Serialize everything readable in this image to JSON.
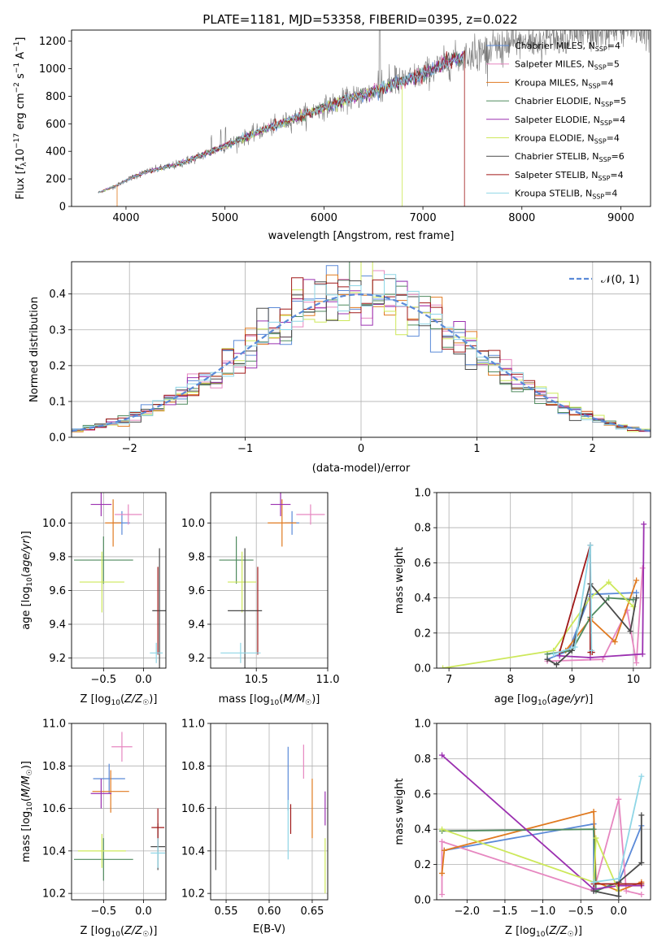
{
  "colors": {
    "chabrier_miles": "#5b8ad8",
    "salpeter_miles": "#e687c0",
    "kroupa_miles": "#e07a20",
    "chabrier_elodie": "#4f8a5e",
    "salpeter_elodie": "#9b30b0",
    "kroupa_elodie": "#cde85a",
    "chabrier_stelib": "#4a4a4a",
    "salpeter_stelib": "#a01818",
    "kroupa_stelib": "#8fd6e6"
  },
  "chart_data": [
    {
      "id": "spectrum",
      "type": "line",
      "title": "PLATE=1181, MJD=53358, FIBERID=0395, z=0.022",
      "xlabel": "wavelength [Angstrom, rest frame]",
      "ylabel": "Flux [f_λ10^-17 erg cm^-2 s^-1 A^-1]",
      "xlim": [
        3450,
        9300
      ],
      "ylim": [
        0,
        1280
      ],
      "xticks": [
        4000,
        5000,
        6000,
        7000,
        8000,
        9000
      ],
      "yticks": [
        0,
        200,
        400,
        600,
        800,
        1000,
        1200
      ],
      "xtick_labels": [
        "4000",
        "5000",
        "6000",
        "7000",
        "8000",
        "9000"
      ],
      "ytick_labels": [
        "0",
        "200",
        "400",
        "600",
        "800",
        "1000",
        "1200"
      ],
      "legend_position": "top-right",
      "series": [
        {
          "name": "Chabrier MILES, N_SSP=4",
          "legend_main": "Chabrier MILES, N",
          "legend_sub": "SSP",
          "legend_tail": "=4",
          "color": "#5b8ad8"
        },
        {
          "name": "Salpeter MILES, N_SSP=5",
          "legend_main": "Salpeter MILES, N",
          "legend_sub": "SSP",
          "legend_tail": "=5",
          "color": "#e687c0"
        },
        {
          "name": "Kroupa MILES, N_SSP=4",
          "legend_main": "Kroupa MILES, N",
          "legend_sub": "SSP",
          "legend_tail": "=4",
          "color": "#e07a20"
        },
        {
          "name": "Chabrier ELODIE, N_SSP=5",
          "legend_main": "Chabrier ELODIE, N",
          "legend_sub": "SSP",
          "legend_tail": "=5",
          "color": "#4f8a5e"
        },
        {
          "name": "Salpeter ELODIE, N_SSP=4",
          "legend_main": "Salpeter ELODIE, N",
          "legend_sub": "SSP",
          "legend_tail": "=4",
          "color": "#9b30b0"
        },
        {
          "name": "Kroupa ELODIE, N_SSP=4",
          "legend_main": "Kroupa ELODIE, N",
          "legend_sub": "SSP",
          "legend_tail": "=4",
          "color": "#cde85a"
        },
        {
          "name": "Chabrier STELIB, N_SSP=6",
          "legend_main": "Chabrier STELIB, N",
          "legend_sub": "SSP",
          "legend_tail": "=6",
          "color": "#4a4a4a"
        },
        {
          "name": "Salpeter STELIB, N_SSP=4",
          "legend_main": "Salpeter STELIB, N",
          "legend_sub": "SSP",
          "legend_tail": "=4",
          "color": "#a01818"
        },
        {
          "name": "Kroupa STELIB, N_SSP=4",
          "legend_main": "Kroupa STELIB, N",
          "legend_sub": "SSP",
          "legend_tail": "=4",
          "color": "#8fd6e6"
        }
      ],
      "continuum": {
        "x": [
          3720,
          3900,
          4000,
          4200,
          4500,
          4800,
          5000,
          5300,
          5600,
          6000,
          6300,
          6600,
          7000,
          7300,
          7500,
          7800,
          8200,
          8600,
          9000,
          9300
        ],
        "y": [
          100,
          150,
          190,
          250,
          300,
          380,
          440,
          530,
          610,
          720,
          790,
          860,
          960,
          1060,
          1110,
          1160,
          1210,
          1250,
          1280,
          1290
        ]
      },
      "dropouts": [
        {
          "x": 3910,
          "series": "Kroupa MILES, N_SSP=4"
        },
        {
          "x": 6790,
          "series": "Kroupa ELODIE, N_SSP=4"
        },
        {
          "x": 7420,
          "series": "Salpeter STELIB, N_SSP=4"
        }
      ]
    },
    {
      "id": "residuals",
      "type": "histogram",
      "xlabel": "(data-model)/error",
      "ylabel": "Normed distribution",
      "xlim": [
        -2.5,
        2.5
      ],
      "ylim": [
        0,
        0.49
      ],
      "xticks": [
        -2,
        -1,
        0,
        1,
        2
      ],
      "yticks": [
        0.0,
        0.1,
        0.2,
        0.3,
        0.4
      ],
      "xtick_labels": [
        "−2",
        "−1",
        "0",
        "1",
        "2"
      ],
      "ytick_labels": [
        "0.0",
        "0.1",
        "0.2",
        "0.3",
        "0.4"
      ],
      "grid": true,
      "bin_width": 0.1,
      "legend_position": "top-right",
      "reference": {
        "name": "𝒩(0, 1)",
        "legend": "𝒩(0, 1)",
        "color": "#5b8ad8",
        "style": "dashed"
      }
    },
    {
      "id": "age_vs_Z",
      "type": "errorbar",
      "xlabel": "Z [log10(Z/Z☉)]",
      "ylabel": "age [log10(age/yr)]",
      "xlim": [
        -0.9,
        0.28
      ],
      "ylim": [
        9.14,
        10.18
      ],
      "xticks": [
        -0.5,
        0.0
      ],
      "yticks": [
        9.2,
        9.4,
        9.6,
        9.8,
        10.0
      ],
      "xtick_labels": [
        "−0.5",
        "0.0"
      ],
      "ytick_labels": [
        "9.2",
        "9.4",
        "9.6",
        "9.8",
        "10.0"
      ],
      "points": [
        {
          "x": -0.27,
          "y": 10.0,
          "xerr": 0.1,
          "yerr": 0.07,
          "color": "#5b8ad8"
        },
        {
          "x": -0.19,
          "y": 10.05,
          "xerr": 0.17,
          "yerr": 0.06,
          "color": "#e687c0"
        },
        {
          "x": -0.38,
          "y": 10.0,
          "xerr": 0.1,
          "yerr": 0.14,
          "color": "#e07a20"
        },
        {
          "x": -0.5,
          "y": 9.78,
          "xerr": 0.37,
          "yerr": 0.14,
          "color": "#4f8a5e"
        },
        {
          "x": -0.53,
          "y": 10.11,
          "xerr": 0.13,
          "yerr": 0.07,
          "color": "#9b30b0"
        },
        {
          "x": -0.52,
          "y": 9.65,
          "xerr": 0.28,
          "yerr": 0.18,
          "color": "#cde85a"
        },
        {
          "x": 0.2,
          "y": 9.48,
          "xerr": 0.09,
          "yerr": 0.37,
          "color": "#4a4a4a"
        },
        {
          "x": 0.18,
          "y": 9.48,
          "xerr": 0.0,
          "yerr": 0.26,
          "color": "#a01818"
        },
        {
          "x": 0.16,
          "y": 9.23,
          "xerr": 0.08,
          "yerr": 0.06,
          "color": "#8fd6e6"
        }
      ]
    },
    {
      "id": "age_vs_mass",
      "type": "errorbar",
      "xlabel": "mass [log10(M/M☉)]",
      "ylabel": "",
      "xlim": [
        10.18,
        11.0
      ],
      "ylim": [
        9.14,
        10.18
      ],
      "xticks": [
        10.5,
        11.0
      ],
      "yticks": [
        9.2,
        9.4,
        9.6,
        9.8,
        10.0
      ],
      "xtick_labels": [
        "10.5",
        "11.0"
      ],
      "ytick_labels": [
        "9.2",
        "9.4",
        "9.6",
        "9.8",
        "10.0"
      ],
      "points": [
        {
          "x": 10.75,
          "y": 10.0,
          "xerr": 0.05,
          "yerr": 0.07,
          "color": "#5b8ad8"
        },
        {
          "x": 10.88,
          "y": 10.05,
          "xerr": 0.1,
          "yerr": 0.06,
          "color": "#e687c0"
        },
        {
          "x": 10.68,
          "y": 10.0,
          "xerr": 0.1,
          "yerr": 0.14,
          "color": "#e07a20"
        },
        {
          "x": 10.36,
          "y": 9.78,
          "xerr": 0.12,
          "yerr": 0.14,
          "color": "#4f8a5e"
        },
        {
          "x": 10.67,
          "y": 10.11,
          "xerr": 0.07,
          "yerr": 0.07,
          "color": "#9b30b0"
        },
        {
          "x": 10.4,
          "y": 9.65,
          "xerr": 0.1,
          "yerr": 0.18,
          "color": "#cde85a"
        },
        {
          "x": 10.42,
          "y": 9.48,
          "xerr": 0.12,
          "yerr": 0.37,
          "color": "#4a4a4a"
        },
        {
          "x": 10.51,
          "y": 9.48,
          "xerr": 0.0,
          "yerr": 0.26,
          "color": "#a01818"
        },
        {
          "x": 10.39,
          "y": 9.23,
          "xerr": 0.14,
          "yerr": 0.06,
          "color": "#8fd6e6"
        }
      ]
    },
    {
      "id": "weight_vs_age",
      "type": "line",
      "xlabel": "age [log10(age/yr)]",
      "ylabel": "mass weight",
      "xlim": [
        6.8,
        10.28
      ],
      "ylim": [
        0.0,
        1.0
      ],
      "xticks": [
        7,
        8,
        9,
        10
      ],
      "yticks": [
        0.0,
        0.2,
        0.4,
        0.6,
        0.8,
        1.0
      ],
      "xtick_labels": [
        "7",
        "8",
        "9",
        "10"
      ],
      "ytick_labels": [
        "0.0",
        "0.2",
        "0.4",
        "0.6",
        "0.8",
        "1.0"
      ],
      "grid": true,
      "series": [
        {
          "name": "Chabrier MILES",
          "color": "#5b8ad8",
          "x": [
            8.6,
            8.95,
            9.3,
            10.05
          ],
          "y": [
            0.05,
            0.1,
            0.42,
            0.43
          ]
        },
        {
          "name": "Salpeter MILES",
          "color": "#e687c0",
          "x": [
            8.6,
            9.5,
            9.9,
            10.05,
            10.15
          ],
          "y": [
            0.04,
            0.05,
            0.33,
            0.03,
            0.57
          ]
        },
        {
          "name": "Kroupa MILES",
          "color": "#e07a20",
          "x": [
            8.9,
            9.3,
            9.7,
            10.05
          ],
          "y": [
            0.1,
            0.28,
            0.15,
            0.5
          ]
        },
        {
          "name": "Chabrier ELODIE",
          "color": "#4f8a5e",
          "x": [
            8.6,
            9.0,
            9.3,
            9.6,
            10.0
          ],
          "y": [
            0.08,
            0.1,
            0.29,
            0.4,
            0.39
          ]
        },
        {
          "name": "Salpeter ELODIE",
          "color": "#9b30b0",
          "x": [
            8.8,
            9.3,
            10.15,
            10.17
          ],
          "y": [
            0.07,
            0.06,
            0.08,
            0.82
          ]
        },
        {
          "name": "Kroupa ELODIE",
          "color": "#cde85a",
          "x": [
            6.9,
            8.7,
            9.3,
            9.6,
            10.0
          ],
          "y": [
            0.0,
            0.1,
            0.4,
            0.49,
            0.35
          ]
        },
        {
          "name": "Chabrier STELIB",
          "color": "#4a4a4a",
          "x": [
            8.6,
            8.75,
            9.0,
            9.3,
            9.95,
            10.05
          ],
          "y": [
            0.05,
            0.02,
            0.1,
            0.48,
            0.21,
            0.4
          ]
        },
        {
          "name": "Salpeter STELIB",
          "color": "#a01818",
          "x": [
            8.8,
            9.3,
            9.3,
            9.33
          ],
          "y": [
            0.09,
            0.7,
            0.09,
            0.09
          ]
        },
        {
          "name": "Kroupa STELIB",
          "color": "#8fd6e6",
          "x": [
            8.7,
            9.05,
            9.3,
            9.32
          ],
          "y": [
            0.08,
            0.12,
            0.7,
            0.1
          ]
        }
      ]
    },
    {
      "id": "mass_vs_Z",
      "type": "errorbar",
      "xlabel": "Z [log10(Z/Z☉)]",
      "ylabel": "mass [log10(M/M☉)]",
      "xlim": [
        -0.9,
        0.28
      ],
      "ylim": [
        10.17,
        11.0
      ],
      "xticks": [
        -0.5,
        0.0
      ],
      "yticks": [
        10.2,
        10.4,
        10.6,
        10.8,
        11.0
      ],
      "xtick_labels": [
        "−0.5",
        "0.0"
      ],
      "ytick_labels": [
        "10.2",
        "10.4",
        "10.6",
        "10.8",
        "11.0"
      ],
      "points": [
        {
          "x": -0.43,
          "y": 10.74,
          "xerr": 0.2,
          "yerr": 0.07,
          "color": "#5b8ad8"
        },
        {
          "x": -0.27,
          "y": 10.89,
          "xerr": 0.13,
          "yerr": 0.07,
          "color": "#e687c0"
        },
        {
          "x": -0.41,
          "y": 10.68,
          "xerr": 0.23,
          "yerr": 0.1,
          "color": "#e07a20"
        },
        {
          "x": -0.5,
          "y": 10.36,
          "xerr": 0.37,
          "yerr": 0.1,
          "color": "#4f8a5e"
        },
        {
          "x": -0.53,
          "y": 10.67,
          "xerr": 0.13,
          "yerr": 0.07,
          "color": "#9b30b0"
        },
        {
          "x": -0.52,
          "y": 10.4,
          "xerr": 0.3,
          "yerr": 0.08,
          "color": "#cde85a"
        },
        {
          "x": 0.18,
          "y": 10.42,
          "xerr": 0.09,
          "yerr": 0.11,
          "color": "#4a4a4a"
        },
        {
          "x": 0.18,
          "y": 10.51,
          "xerr": 0.08,
          "yerr": 0.09,
          "color": "#a01818"
        },
        {
          "x": 0.18,
          "y": 10.39,
          "xerr": 0.09,
          "yerr": 0.07,
          "color": "#8fd6e6"
        }
      ]
    },
    {
      "id": "mass_vs_ebv",
      "type": "errorbar",
      "xlabel": "E(B-V)",
      "ylabel": "",
      "xlim": [
        0.532,
        0.668
      ],
      "ylim": [
        10.17,
        11.0
      ],
      "xticks": [
        0.55,
        0.6,
        0.65
      ],
      "yticks": [
        10.2,
        10.4,
        10.6,
        10.8,
        11.0
      ],
      "xtick_labels": [
        "0.55",
        "0.60",
        "0.65"
      ],
      "ytick_labels": [
        "10.2",
        "10.4",
        "10.6",
        "10.8",
        "11.0"
      ],
      "points": [
        {
          "x": 0.622,
          "y": 10.74,
          "xerr": 0.0,
          "yerr": 0.15,
          "color": "#5b8ad8"
        },
        {
          "x": 0.64,
          "y": 10.82,
          "xerr": 0.0,
          "yerr": 0.08,
          "color": "#e687c0"
        },
        {
          "x": 0.65,
          "y": 10.6,
          "xerr": 0.0,
          "yerr": 0.14,
          "color": "#e07a20"
        },
        {
          "x": 0.538,
          "y": 10.46,
          "xerr": 0.0,
          "yerr": 0.15,
          "color": "#4a4a4a"
        },
        {
          "x": 0.625,
          "y": 10.55,
          "xerr": 0.0,
          "yerr": 0.07,
          "color": "#a01818"
        },
        {
          "x": 0.622,
          "y": 10.5,
          "xerr": 0.0,
          "yerr": 0.14,
          "color": "#8fd6e6"
        },
        {
          "x": 0.665,
          "y": 10.33,
          "xerr": 0.0,
          "yerr": 0.13,
          "color": "#cde85a"
        },
        {
          "x": 0.665,
          "y": 10.6,
          "xerr": 0.0,
          "yerr": 0.08,
          "color": "#9b30b0"
        }
      ]
    },
    {
      "id": "weight_vs_Z",
      "type": "line",
      "xlabel": "Z [log10(Z/Z☉)]",
      "ylabel": "mass weight",
      "xlim": [
        -2.4,
        0.42
      ],
      "ylim": [
        0.0,
        1.0
      ],
      "xticks": [
        -2.0,
        -1.5,
        -1.0,
        -0.5,
        0.0
      ],
      "yticks": [
        0.0,
        0.2,
        0.4,
        0.6,
        0.8,
        1.0
      ],
      "xtick_labels": [
        "−2.0",
        "−1.5",
        "−1.0",
        "−0.5",
        "0.0"
      ],
      "ytick_labels": [
        "0.0",
        "0.2",
        "0.4",
        "0.6",
        "0.8",
        "1.0"
      ],
      "grid": true,
      "series": [
        {
          "name": "Chabrier MILES",
          "color": "#5b8ad8",
          "x": [
            -2.3,
            -0.33,
            -0.33,
            0.0,
            0.3
          ],
          "y": [
            0.28,
            0.43,
            0.05,
            0.1,
            0.42
          ]
        },
        {
          "name": "Salpeter MILES",
          "color": "#e687c0",
          "x": [
            -2.33,
            -2.33,
            -0.33,
            0.0,
            0.1,
            0.3
          ],
          "y": [
            0.03,
            0.33,
            0.05,
            0.57,
            0.05,
            0.03
          ]
        },
        {
          "name": "Kroupa MILES",
          "color": "#e07a20",
          "x": [
            -2.33,
            -2.3,
            -0.33,
            -0.3,
            0.0,
            0.3
          ],
          "y": [
            0.15,
            0.28,
            0.5,
            0.1,
            0.05,
            0.1
          ]
        },
        {
          "name": "Chabrier ELODIE",
          "color": "#4f8a5e",
          "x": [
            -2.33,
            -0.33,
            -0.3,
            0.0
          ],
          "y": [
            0.39,
            0.4,
            0.05,
            0.1
          ]
        },
        {
          "name": "Salpeter ELODIE",
          "color": "#9b30b0",
          "x": [
            -2.33,
            -0.33,
            0.0,
            0.3
          ],
          "y": [
            0.82,
            0.06,
            0.08,
            0.08
          ]
        },
        {
          "name": "Kroupa ELODIE",
          "color": "#cde85a",
          "x": [
            -2.33,
            -0.33,
            -0.3,
            0.0
          ],
          "y": [
            0.4,
            0.1,
            0.35,
            0.05
          ]
        },
        {
          "name": "Chabrier STELIB",
          "color": "#4a4a4a",
          "x": [
            -0.33,
            0.0,
            0.0,
            0.3,
            0.3
          ],
          "y": [
            0.05,
            0.02,
            0.1,
            0.21,
            0.48
          ]
        },
        {
          "name": "Salpeter STELIB",
          "color": "#a01818",
          "x": [
            -0.33,
            0.0,
            0.3
          ],
          "y": [
            0.09,
            0.09,
            0.09
          ]
        },
        {
          "name": "Kroupa STELIB",
          "color": "#8fd6e6",
          "x": [
            -0.33,
            0.0,
            0.3
          ],
          "y": [
            0.1,
            0.12,
            0.7
          ]
        }
      ]
    }
  ]
}
